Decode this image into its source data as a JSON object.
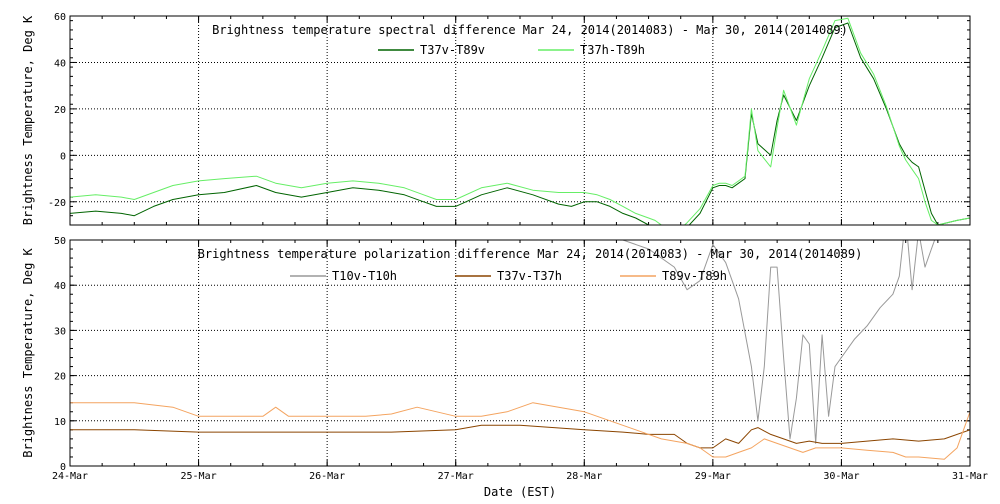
{
  "chart_data": [
    {
      "type": "line",
      "title": "Brightness temperature spectral difference    Mar 24, 2014(2014083) - Mar 30, 2014(2014089)",
      "xlabel": "",
      "ylabel": "Brightness Temperature, Deg K",
      "ylim": [
        -30,
        60
      ],
      "yticks": [
        -20,
        0,
        20,
        40,
        60
      ],
      "x_range_days": [
        0,
        7
      ],
      "grid": true,
      "legend_position": "top-center",
      "series": [
        {
          "name": "T37v-T89v",
          "color": "#006400",
          "x": [
            0,
            0.2,
            0.4,
            0.5,
            0.65,
            0.8,
            1.0,
            1.2,
            1.45,
            1.6,
            1.8,
            2.0,
            2.2,
            2.4,
            2.6,
            2.75,
            2.85,
            3.0,
            3.2,
            3.4,
            3.6,
            3.8,
            3.9,
            4.0,
            4.1,
            4.2,
            4.3,
            4.4,
            4.5,
            4.55,
            4.7,
            4.8,
            4.9,
            5.0,
            5.05,
            5.1,
            5.15,
            5.2,
            5.25,
            5.3,
            5.35,
            5.45,
            5.5,
            5.55,
            5.65,
            5.75,
            5.85,
            5.95,
            6.05,
            6.15,
            6.25,
            6.35,
            6.45,
            6.5,
            6.55,
            6.6,
            6.65,
            6.7,
            6.75,
            6.9,
            7.0
          ],
          "values": [
            -25,
            -24,
            -25,
            -26,
            -22,
            -19,
            -17,
            -16,
            -13,
            -16,
            -18,
            -16,
            -14,
            -15,
            -17,
            -20,
            -22,
            -22,
            -17,
            -14,
            -17,
            -21,
            -22,
            -20,
            -20,
            -22,
            -25,
            -27,
            -30,
            -31,
            -36,
            -31,
            -25,
            -14,
            -13,
            -13,
            -14,
            -12,
            -10,
            18,
            5,
            0,
            15,
            26,
            15,
            30,
            42,
            55,
            57,
            42,
            33,
            20,
            5,
            0,
            -3,
            -5,
            -15,
            -25,
            -30,
            -28,
            -27
          ]
        },
        {
          "name": "T37h-T89h",
          "color": "#66ee66",
          "x": [
            0,
            0.2,
            0.4,
            0.5,
            0.65,
            0.8,
            1.0,
            1.2,
            1.45,
            1.6,
            1.8,
            2.0,
            2.2,
            2.4,
            2.6,
            2.75,
            2.85,
            3.0,
            3.2,
            3.4,
            3.6,
            3.8,
            3.9,
            4.0,
            4.1,
            4.2,
            4.3,
            4.4,
            4.5,
            4.55,
            4.7,
            4.8,
            4.9,
            5.0,
            5.05,
            5.1,
            5.15,
            5.2,
            5.25,
            5.3,
            5.35,
            5.45,
            5.5,
            5.55,
            5.65,
            5.75,
            5.85,
            5.95,
            6.05,
            6.15,
            6.25,
            6.35,
            6.45,
            6.5,
            6.55,
            6.6,
            6.65,
            6.7,
            6.75,
            6.9,
            7.0
          ],
          "values": [
            -18,
            -17,
            -18,
            -19,
            -16,
            -13,
            -11,
            -10,
            -9,
            -12,
            -14,
            -12,
            -11,
            -12,
            -14,
            -17,
            -19,
            -19,
            -14,
            -12,
            -15,
            -16,
            -16,
            -16,
            -17,
            -19,
            -22,
            -25,
            -27,
            -28,
            -34,
            -29,
            -23,
            -13,
            -12,
            -12,
            -13,
            -11,
            -9,
            20,
            2,
            -5,
            12,
            28,
            13,
            33,
            45,
            58,
            59,
            44,
            35,
            21,
            4,
            -2,
            -6,
            -10,
            -20,
            -28,
            -30,
            -28,
            -27
          ]
        }
      ]
    },
    {
      "type": "line",
      "title": "Brightness temperature polarization difference    Mar 24, 2014(2014083) - Mar 30, 2014(2014089)",
      "xlabel": "Date (EST)",
      "ylabel": "Brightness Temperature, Deg K",
      "ylim": [
        0,
        50
      ],
      "yticks": [
        0,
        10,
        20,
        30,
        40,
        50
      ],
      "xticks": [
        "24-Mar",
        "25-Mar",
        "26-Mar",
        "27-Mar",
        "28-Mar",
        "29-Mar",
        "30-Mar",
        "31-Mar"
      ],
      "x_range_days": [
        0,
        7
      ],
      "grid": true,
      "legend_position": "top-center",
      "series": [
        {
          "name": "T10v-T10h",
          "color": "#999999",
          "x": [
            0,
            0.5,
            1.0,
            1.5,
            2.0,
            2.5,
            3.0,
            3.5,
            4.0,
            4.3,
            4.5,
            4.7,
            4.8,
            4.9,
            5.0,
            5.1,
            5.2,
            5.3,
            5.35,
            5.4,
            5.45,
            5.5,
            5.55,
            5.6,
            5.65,
            5.7,
            5.75,
            5.8,
            5.85,
            5.9,
            5.95,
            6.0,
            6.1,
            6.2,
            6.3,
            6.4,
            6.45,
            6.5,
            6.55,
            6.6,
            6.65,
            6.7,
            6.75,
            6.8,
            6.85,
            6.9,
            7.0
          ],
          "values": [
            52,
            51,
            51,
            52,
            52,
            51,
            52,
            51,
            51,
            50,
            48,
            44,
            39,
            41,
            49,
            45,
            37,
            22,
            10,
            22,
            44,
            44,
            24,
            6,
            15,
            29,
            27,
            5,
            29,
            11,
            22,
            24,
            28,
            31,
            35,
            38,
            42,
            55,
            39,
            52,
            44,
            48,
            52,
            50,
            55,
            53,
            52
          ]
        },
        {
          "name": "T37v-T37h",
          "color": "#8b4500",
          "x": [
            0,
            0.5,
            1.0,
            1.5,
            2.0,
            2.5,
            3.0,
            3.2,
            3.5,
            4.0,
            4.3,
            4.5,
            4.7,
            4.8,
            4.9,
            5.0,
            5.1,
            5.2,
            5.3,
            5.35,
            5.45,
            5.55,
            5.65,
            5.75,
            5.85,
            6.0,
            6.2,
            6.4,
            6.6,
            6.8,
            7.0
          ],
          "values": [
            8,
            8,
            7.5,
            7.5,
            7.5,
            7.5,
            8,
            9,
            9,
            8,
            7.5,
            7,
            7,
            5,
            4,
            4,
            6,
            5,
            8,
            8.5,
            7,
            6,
            5,
            5.5,
            5,
            5,
            5.5,
            6,
            5.5,
            6,
            8
          ]
        },
        {
          "name": "T89v-T89h",
          "color": "#f4a460",
          "x": [
            0,
            0.5,
            0.8,
            1.0,
            1.5,
            1.6,
            1.7,
            2.0,
            2.3,
            2.5,
            2.7,
            3.0,
            3.2,
            3.4,
            3.6,
            3.8,
            4.0,
            4.2,
            4.4,
            4.6,
            4.8,
            4.9,
            5.0,
            5.1,
            5.2,
            5.3,
            5.4,
            5.5,
            5.6,
            5.7,
            5.8,
            5.9,
            6.0,
            6.2,
            6.4,
            6.5,
            6.6,
            6.8,
            6.9,
            7.0
          ],
          "values": [
            14,
            14,
            13,
            11,
            11,
            13,
            11,
            11,
            11,
            11.5,
            13,
            11,
            11,
            12,
            14,
            13,
            12,
            10,
            8,
            6,
            5,
            4,
            2,
            2,
            3,
            4,
            6,
            5,
            4,
            3,
            4,
            4,
            4,
            3.5,
            3,
            2,
            2,
            1.5,
            4,
            12
          ]
        }
      ]
    }
  ]
}
